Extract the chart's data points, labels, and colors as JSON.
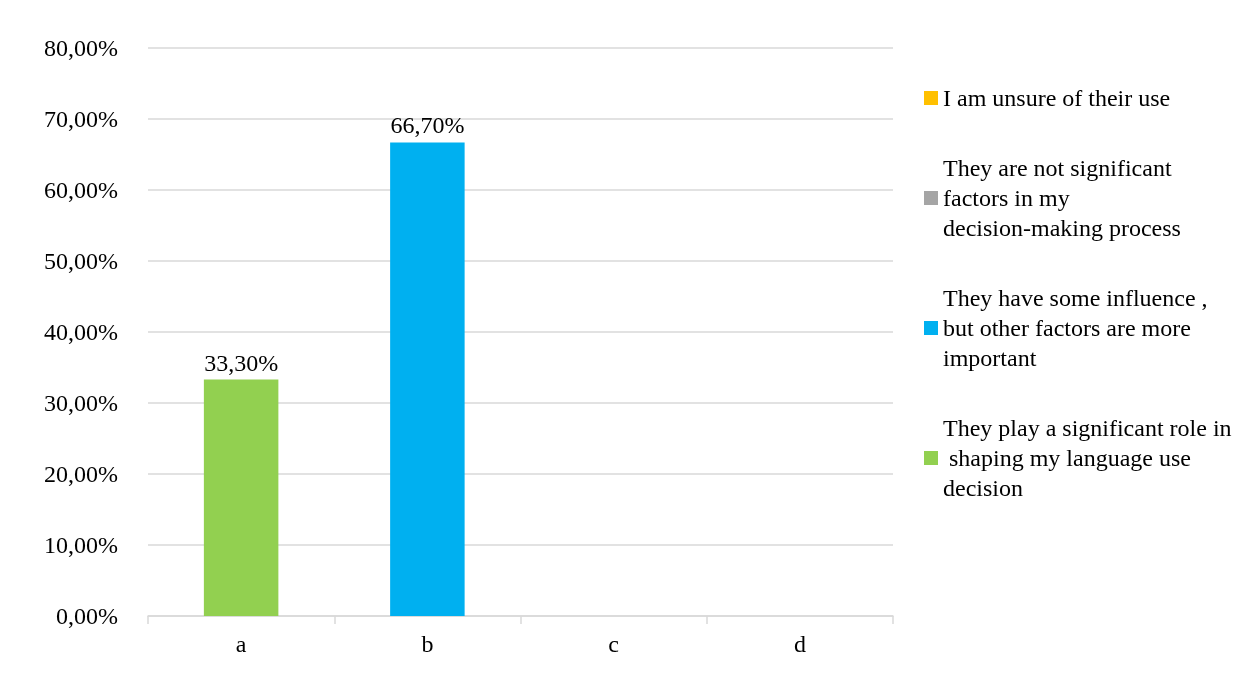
{
  "chart_data": {
    "type": "bar",
    "stacked": true,
    "categories": [
      "a",
      "b",
      "c",
      "d"
    ],
    "series": [
      {
        "name": "They play a significant role in shaping my language use decision",
        "color": "#92d050",
        "values": [
          33.3,
          null,
          null,
          null
        ],
        "value_labels": [
          "33,30%",
          null,
          null,
          null
        ]
      },
      {
        "name": "They have some influence , but other factors are more important",
        "color": "#00b0f0",
        "values": [
          null,
          66.7,
          null,
          null
        ],
        "value_labels": [
          null,
          "66,70%",
          null,
          null
        ]
      },
      {
        "name": "They are not significant factors in my decision-making process",
        "color": "#a5a5a5",
        "values": [
          null,
          null,
          null,
          null
        ]
      },
      {
        "name": "I am unsure of their use",
        "color": "#ffc000",
        "values": [
          null,
          null,
          null,
          null
        ]
      }
    ],
    "ylim": [
      0,
      80
    ],
    "yticks": [
      {
        "value": 0,
        "label": "0,00%"
      },
      {
        "value": 10,
        "label": "10,00%"
      },
      {
        "value": 20,
        "label": "20,00%"
      },
      {
        "value": 30,
        "label": "30,00%"
      },
      {
        "value": 40,
        "label": "40,00%"
      },
      {
        "value": 50,
        "label": "50,00%"
      },
      {
        "value": 60,
        "label": "60,00%"
      },
      {
        "value": 70,
        "label": "70,00%"
      },
      {
        "value": 80,
        "label": "80,00%"
      }
    ],
    "grid": "y",
    "legend": "right"
  }
}
